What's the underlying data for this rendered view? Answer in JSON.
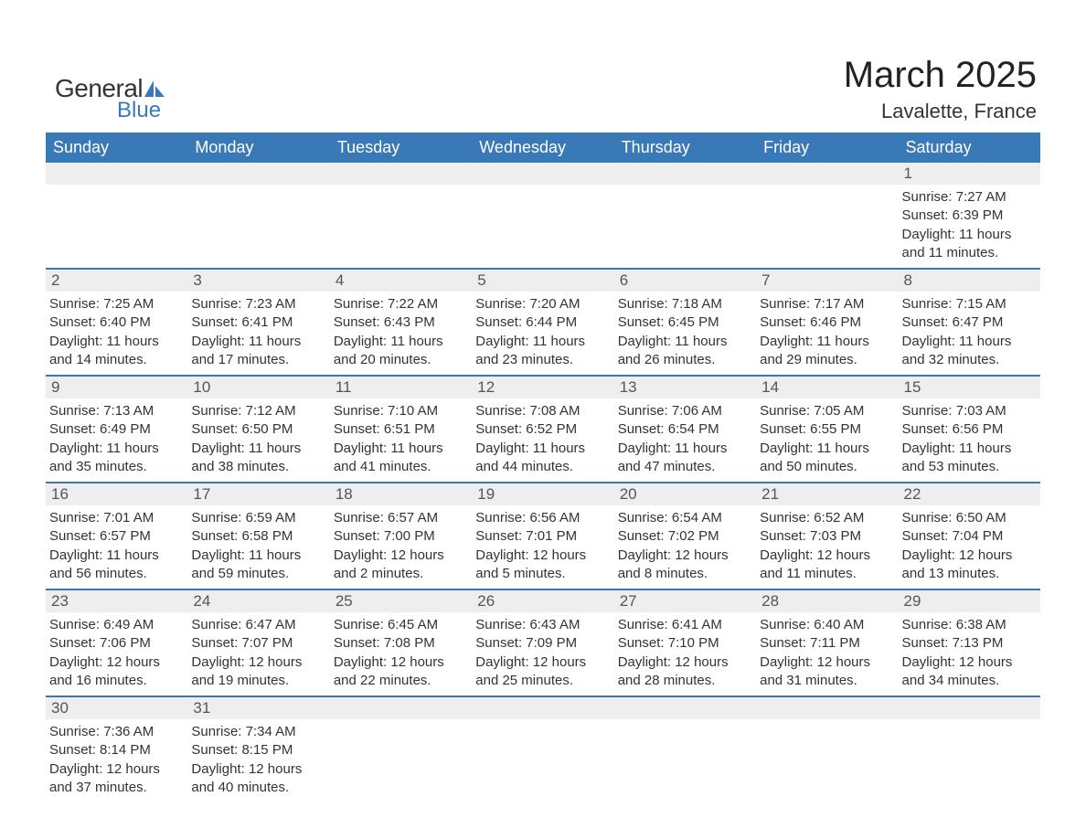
{
  "logo": {
    "text_general": "General",
    "text_blue": "Blue",
    "icon_color": "#3a79b7"
  },
  "title": "March 2025",
  "location": "Lavalette, France",
  "colors": {
    "header_bg": "#3a79b7",
    "header_text": "#ffffff",
    "daynum_bg": "#eeeeee",
    "daynum_text": "#555555",
    "body_text": "#333333",
    "week_divider": "#3a79b7",
    "page_bg": "#ffffff"
  },
  "day_headers": [
    "Sunday",
    "Monday",
    "Tuesday",
    "Wednesday",
    "Thursday",
    "Friday",
    "Saturday"
  ],
  "weeks": [
    {
      "days": [
        {
          "num": "",
          "sunrise": "",
          "sunset": "",
          "daylight1": "",
          "daylight2": ""
        },
        {
          "num": "",
          "sunrise": "",
          "sunset": "",
          "daylight1": "",
          "daylight2": ""
        },
        {
          "num": "",
          "sunrise": "",
          "sunset": "",
          "daylight1": "",
          "daylight2": ""
        },
        {
          "num": "",
          "sunrise": "",
          "sunset": "",
          "daylight1": "",
          "daylight2": ""
        },
        {
          "num": "",
          "sunrise": "",
          "sunset": "",
          "daylight1": "",
          "daylight2": ""
        },
        {
          "num": "",
          "sunrise": "",
          "sunset": "",
          "daylight1": "",
          "daylight2": ""
        },
        {
          "num": "1",
          "sunrise": "Sunrise: 7:27 AM",
          "sunset": "Sunset: 6:39 PM",
          "daylight1": "Daylight: 11 hours",
          "daylight2": "and 11 minutes."
        }
      ]
    },
    {
      "days": [
        {
          "num": "2",
          "sunrise": "Sunrise: 7:25 AM",
          "sunset": "Sunset: 6:40 PM",
          "daylight1": "Daylight: 11 hours",
          "daylight2": "and 14 minutes."
        },
        {
          "num": "3",
          "sunrise": "Sunrise: 7:23 AM",
          "sunset": "Sunset: 6:41 PM",
          "daylight1": "Daylight: 11 hours",
          "daylight2": "and 17 minutes."
        },
        {
          "num": "4",
          "sunrise": "Sunrise: 7:22 AM",
          "sunset": "Sunset: 6:43 PM",
          "daylight1": "Daylight: 11 hours",
          "daylight2": "and 20 minutes."
        },
        {
          "num": "5",
          "sunrise": "Sunrise: 7:20 AM",
          "sunset": "Sunset: 6:44 PM",
          "daylight1": "Daylight: 11 hours",
          "daylight2": "and 23 minutes."
        },
        {
          "num": "6",
          "sunrise": "Sunrise: 7:18 AM",
          "sunset": "Sunset: 6:45 PM",
          "daylight1": "Daylight: 11 hours",
          "daylight2": "and 26 minutes."
        },
        {
          "num": "7",
          "sunrise": "Sunrise: 7:17 AM",
          "sunset": "Sunset: 6:46 PM",
          "daylight1": "Daylight: 11 hours",
          "daylight2": "and 29 minutes."
        },
        {
          "num": "8",
          "sunrise": "Sunrise: 7:15 AM",
          "sunset": "Sunset: 6:47 PM",
          "daylight1": "Daylight: 11 hours",
          "daylight2": "and 32 minutes."
        }
      ]
    },
    {
      "days": [
        {
          "num": "9",
          "sunrise": "Sunrise: 7:13 AM",
          "sunset": "Sunset: 6:49 PM",
          "daylight1": "Daylight: 11 hours",
          "daylight2": "and 35 minutes."
        },
        {
          "num": "10",
          "sunrise": "Sunrise: 7:12 AM",
          "sunset": "Sunset: 6:50 PM",
          "daylight1": "Daylight: 11 hours",
          "daylight2": "and 38 minutes."
        },
        {
          "num": "11",
          "sunrise": "Sunrise: 7:10 AM",
          "sunset": "Sunset: 6:51 PM",
          "daylight1": "Daylight: 11 hours",
          "daylight2": "and 41 minutes."
        },
        {
          "num": "12",
          "sunrise": "Sunrise: 7:08 AM",
          "sunset": "Sunset: 6:52 PM",
          "daylight1": "Daylight: 11 hours",
          "daylight2": "and 44 minutes."
        },
        {
          "num": "13",
          "sunrise": "Sunrise: 7:06 AM",
          "sunset": "Sunset: 6:54 PM",
          "daylight1": "Daylight: 11 hours",
          "daylight2": "and 47 minutes."
        },
        {
          "num": "14",
          "sunrise": "Sunrise: 7:05 AM",
          "sunset": "Sunset: 6:55 PM",
          "daylight1": "Daylight: 11 hours",
          "daylight2": "and 50 minutes."
        },
        {
          "num": "15",
          "sunrise": "Sunrise: 7:03 AM",
          "sunset": "Sunset: 6:56 PM",
          "daylight1": "Daylight: 11 hours",
          "daylight2": "and 53 minutes."
        }
      ]
    },
    {
      "days": [
        {
          "num": "16",
          "sunrise": "Sunrise: 7:01 AM",
          "sunset": "Sunset: 6:57 PM",
          "daylight1": "Daylight: 11 hours",
          "daylight2": "and 56 minutes."
        },
        {
          "num": "17",
          "sunrise": "Sunrise: 6:59 AM",
          "sunset": "Sunset: 6:58 PM",
          "daylight1": "Daylight: 11 hours",
          "daylight2": "and 59 minutes."
        },
        {
          "num": "18",
          "sunrise": "Sunrise: 6:57 AM",
          "sunset": "Sunset: 7:00 PM",
          "daylight1": "Daylight: 12 hours",
          "daylight2": "and 2 minutes."
        },
        {
          "num": "19",
          "sunrise": "Sunrise: 6:56 AM",
          "sunset": "Sunset: 7:01 PM",
          "daylight1": "Daylight: 12 hours",
          "daylight2": "and 5 minutes."
        },
        {
          "num": "20",
          "sunrise": "Sunrise: 6:54 AM",
          "sunset": "Sunset: 7:02 PM",
          "daylight1": "Daylight: 12 hours",
          "daylight2": "and 8 minutes."
        },
        {
          "num": "21",
          "sunrise": "Sunrise: 6:52 AM",
          "sunset": "Sunset: 7:03 PM",
          "daylight1": "Daylight: 12 hours",
          "daylight2": "and 11 minutes."
        },
        {
          "num": "22",
          "sunrise": "Sunrise: 6:50 AM",
          "sunset": "Sunset: 7:04 PM",
          "daylight1": "Daylight: 12 hours",
          "daylight2": "and 13 minutes."
        }
      ]
    },
    {
      "days": [
        {
          "num": "23",
          "sunrise": "Sunrise: 6:49 AM",
          "sunset": "Sunset: 7:06 PM",
          "daylight1": "Daylight: 12 hours",
          "daylight2": "and 16 minutes."
        },
        {
          "num": "24",
          "sunrise": "Sunrise: 6:47 AM",
          "sunset": "Sunset: 7:07 PM",
          "daylight1": "Daylight: 12 hours",
          "daylight2": "and 19 minutes."
        },
        {
          "num": "25",
          "sunrise": "Sunrise: 6:45 AM",
          "sunset": "Sunset: 7:08 PM",
          "daylight1": "Daylight: 12 hours",
          "daylight2": "and 22 minutes."
        },
        {
          "num": "26",
          "sunrise": "Sunrise: 6:43 AM",
          "sunset": "Sunset: 7:09 PM",
          "daylight1": "Daylight: 12 hours",
          "daylight2": "and 25 minutes."
        },
        {
          "num": "27",
          "sunrise": "Sunrise: 6:41 AM",
          "sunset": "Sunset: 7:10 PM",
          "daylight1": "Daylight: 12 hours",
          "daylight2": "and 28 minutes."
        },
        {
          "num": "28",
          "sunrise": "Sunrise: 6:40 AM",
          "sunset": "Sunset: 7:11 PM",
          "daylight1": "Daylight: 12 hours",
          "daylight2": "and 31 minutes."
        },
        {
          "num": "29",
          "sunrise": "Sunrise: 6:38 AM",
          "sunset": "Sunset: 7:13 PM",
          "daylight1": "Daylight: 12 hours",
          "daylight2": "and 34 minutes."
        }
      ]
    },
    {
      "days": [
        {
          "num": "30",
          "sunrise": "Sunrise: 7:36 AM",
          "sunset": "Sunset: 8:14 PM",
          "daylight1": "Daylight: 12 hours",
          "daylight2": "and 37 minutes."
        },
        {
          "num": "31",
          "sunrise": "Sunrise: 7:34 AM",
          "sunset": "Sunset: 8:15 PM",
          "daylight1": "Daylight: 12 hours",
          "daylight2": "and 40 minutes."
        },
        {
          "num": "",
          "sunrise": "",
          "sunset": "",
          "daylight1": "",
          "daylight2": ""
        },
        {
          "num": "",
          "sunrise": "",
          "sunset": "",
          "daylight1": "",
          "daylight2": ""
        },
        {
          "num": "",
          "sunrise": "",
          "sunset": "",
          "daylight1": "",
          "daylight2": ""
        },
        {
          "num": "",
          "sunrise": "",
          "sunset": "",
          "daylight1": "",
          "daylight2": ""
        },
        {
          "num": "",
          "sunrise": "",
          "sunset": "",
          "daylight1": "",
          "daylight2": ""
        }
      ]
    }
  ]
}
